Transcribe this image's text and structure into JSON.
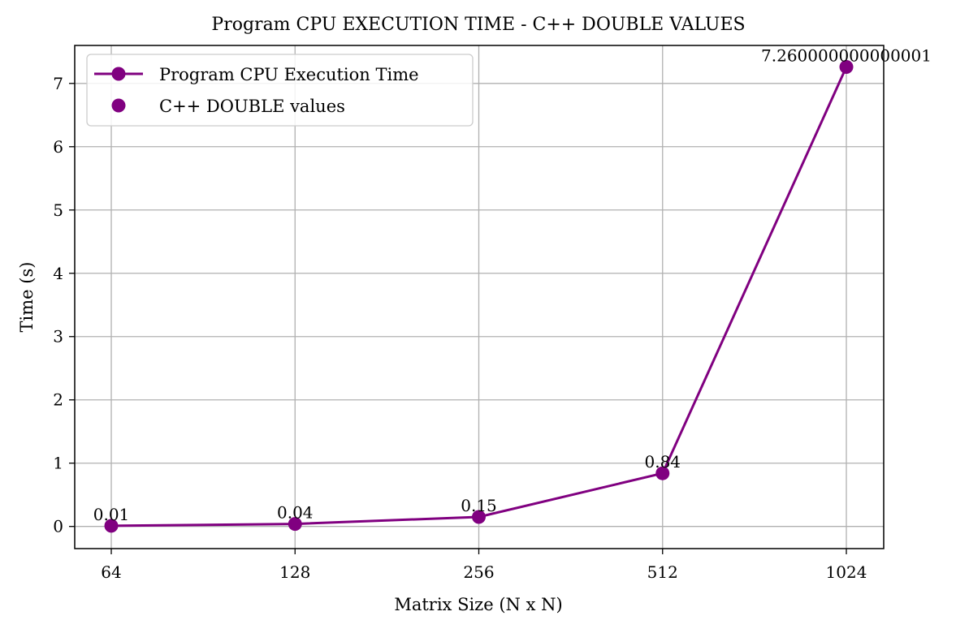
{
  "chart_data": {
    "type": "line",
    "title": "Program CPU EXECUTION TIME - C++ DOUBLE VALUES",
    "xlabel": "Matrix Size (N x N)",
    "ylabel": "Time (s)",
    "categories": [
      "64",
      "128",
      "256",
      "512",
      "1024"
    ],
    "series": [
      {
        "name": "Program CPU Execution Time",
        "values": [
          0.01,
          0.04,
          0.15,
          0.84,
          7.260000000000001
        ],
        "color": "#800080",
        "marker": "circle",
        "line": true
      }
    ],
    "scatter_legend_name": "C++ DOUBLE values",
    "data_labels": [
      "0.01",
      "0.04",
      "0.15",
      "0.84",
      "7.260000000000001"
    ],
    "ylim": [
      -0.35,
      7.6
    ],
    "yticks": [
      "0",
      "1",
      "2",
      "3",
      "4",
      "5",
      "6",
      "7"
    ],
    "grid": true,
    "legend_position": "top-left"
  }
}
